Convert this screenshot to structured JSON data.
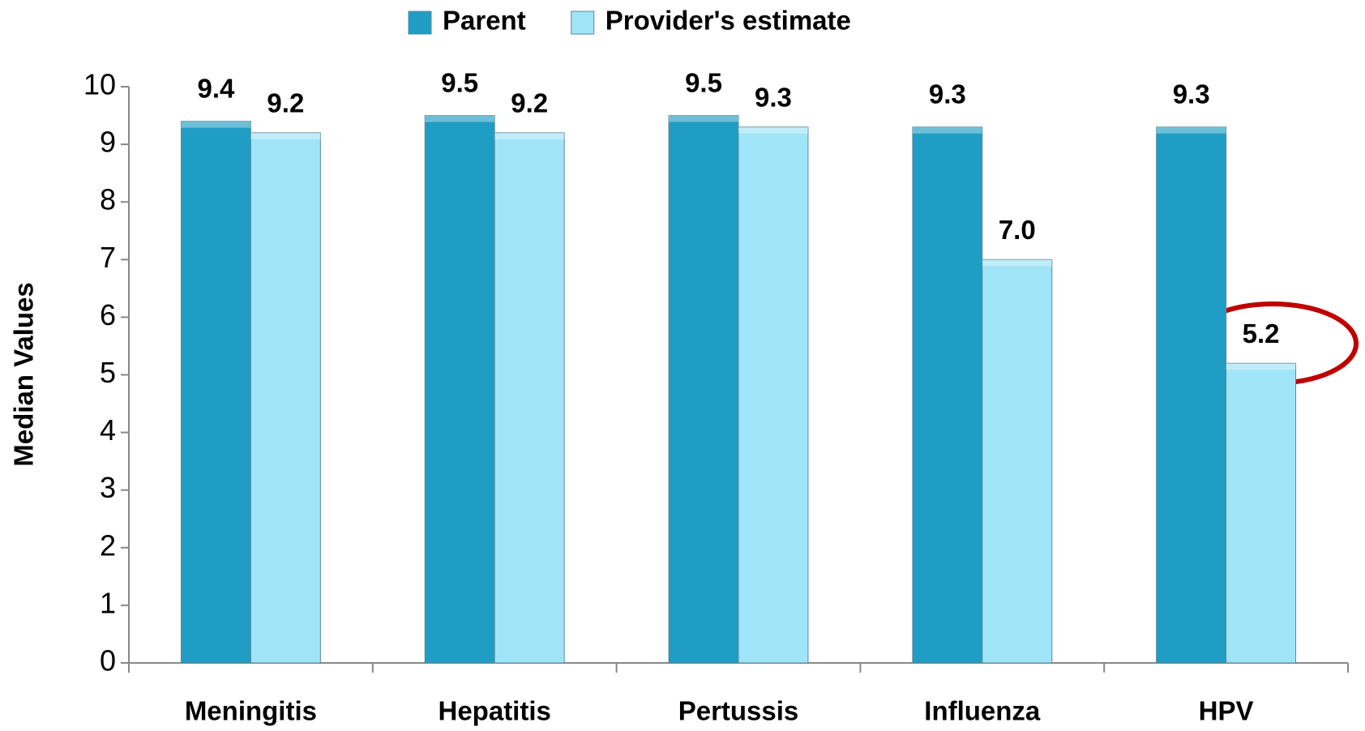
{
  "chart_data": {
    "type": "bar",
    "y_label": "Median Values",
    "categories": [
      "Meningitis",
      "Hepatitis",
      "Pertussis",
      "Influenza",
      "HPV"
    ],
    "series": [
      {
        "name": "Parent",
        "color": "#1f9dc4",
        "values": [
          9.4,
          9.5,
          9.5,
          9.3,
          9.3
        ],
        "value_labels": [
          "9.4",
          "9.5",
          "9.5",
          "9.3",
          "9.3"
        ]
      },
      {
        "name": "Provider's estimate",
        "color": "#a0e4f8",
        "values": [
          9.2,
          9.2,
          9.3,
          7.0,
          5.2
        ],
        "value_labels": [
          "9.2",
          "9.2",
          "9.3",
          "7.0",
          "5.2"
        ]
      }
    ],
    "ylim": [
      0,
      10
    ],
    "yticks": [
      0,
      1,
      2,
      3,
      4,
      5,
      6,
      7,
      8,
      9,
      10
    ],
    "legend": "top"
  }
}
